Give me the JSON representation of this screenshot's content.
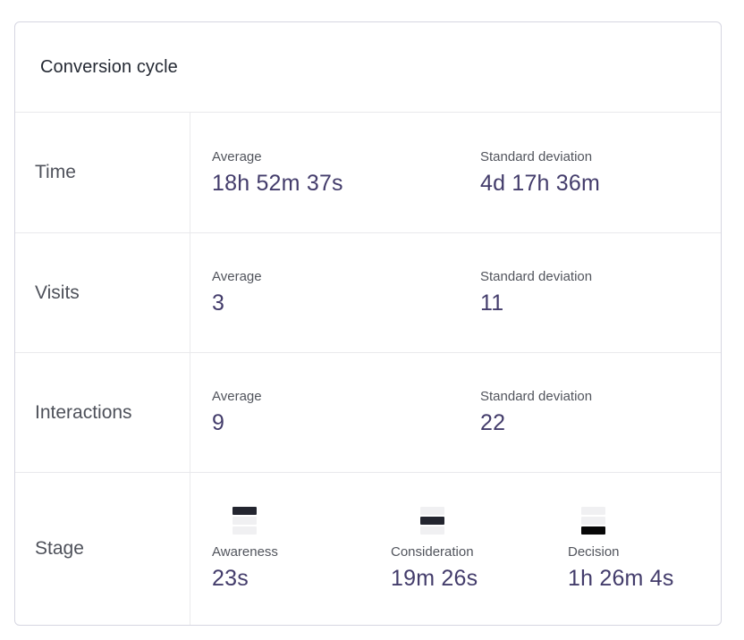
{
  "panel": {
    "title": "Conversion cycle",
    "rows": [
      {
        "label": "Time",
        "metrics": [
          {
            "label": "Average",
            "value": "18h 52m 37s"
          },
          {
            "label": "Standard deviation",
            "value": "4d 17h 36m"
          }
        ]
      },
      {
        "label": "Visits",
        "metrics": [
          {
            "label": "Average",
            "value": "3"
          },
          {
            "label": "Standard deviation",
            "value": "11"
          }
        ]
      },
      {
        "label": "Interactions",
        "metrics": [
          {
            "label": "Average",
            "value": "9"
          },
          {
            "label": "Standard deviation",
            "value": "22"
          }
        ]
      },
      {
        "label": "Stage",
        "stages": [
          {
            "label": "Awareness",
            "value": "23s",
            "active_segment": 0,
            "icon_color": "#23252f",
            "icon_name": "funnel-step-1-icon"
          },
          {
            "label": "Consideration",
            "value": "19m 26s",
            "active_segment": 1,
            "icon_color": "#23252f",
            "icon_name": "funnel-step-2-icon"
          },
          {
            "label": "Decision",
            "value": "1h 26m 4s",
            "active_segment": 2,
            "icon_color": "#070707",
            "icon_name": "funnel-step-3-icon"
          }
        ]
      }
    ]
  },
  "colors": {
    "value_text": "#433c6b",
    "label_text": "#51545c",
    "row_label_text": "#4e515a",
    "border": "#d6d6e1",
    "separator": "#e9e9ec",
    "segment_inactive": "#f0f0f2"
  }
}
